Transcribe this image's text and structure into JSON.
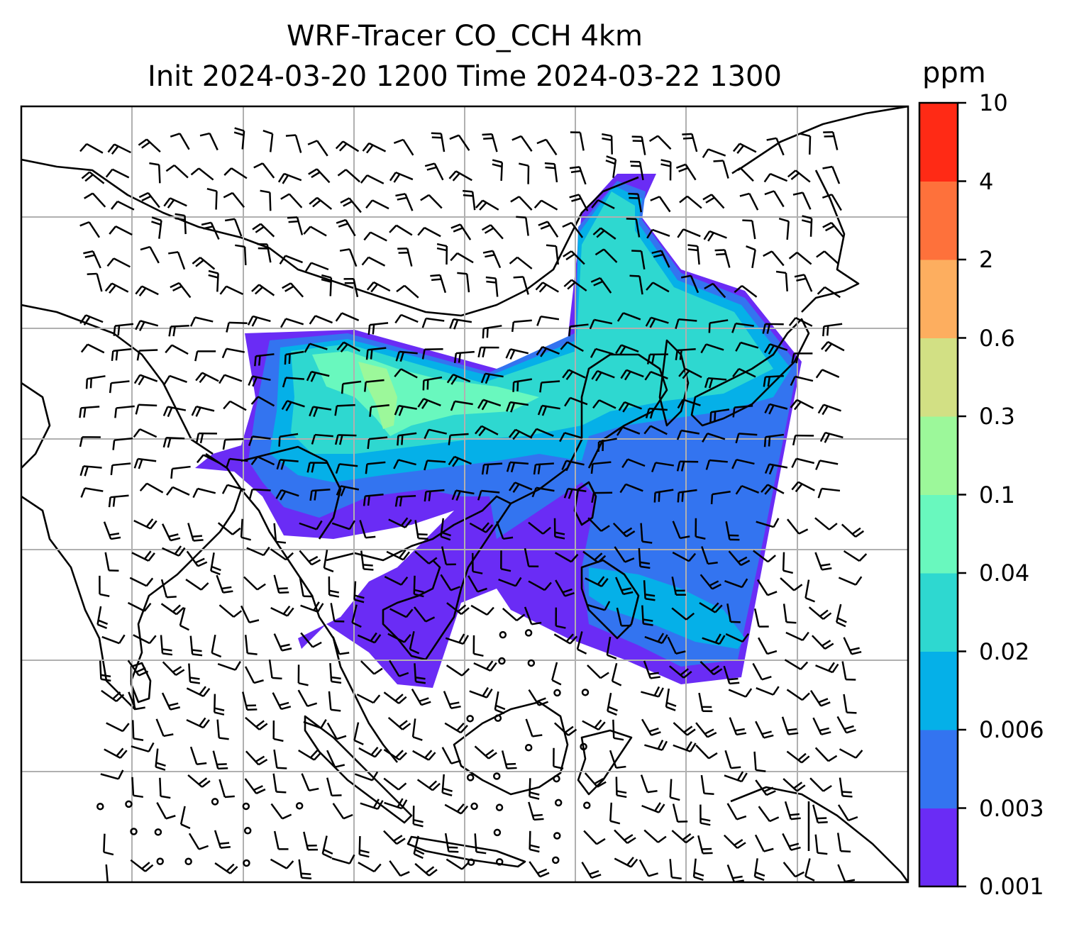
{
  "title": {
    "line1": "WRF-Tracer CO_CCH 4km",
    "line2": "Init 2024-03-20 1200 Time 2024-03-22 1300"
  },
  "colorbar": {
    "unit": "ppm",
    "levels": [
      "0.001",
      "0.003",
      "0.006",
      "0.02",
      "0.04",
      "0.1",
      "0.3",
      "0.6",
      "2",
      "4",
      "10"
    ],
    "colors": [
      "#6a2cf5",
      "#3374f0",
      "#05b0e8",
      "#2ed8d0",
      "#69f8be",
      "#9cf89a",
      "#d2e084",
      "#fdae5f",
      "#fe713b",
      "#ff2a15"
    ]
  },
  "map": {
    "field": "CO_CCH tracer concentration",
    "overlays": [
      "coastlines",
      "country borders",
      "lat-lon gridlines",
      "wind barbs"
    ],
    "plume_color_scale": "rainbow"
  }
}
